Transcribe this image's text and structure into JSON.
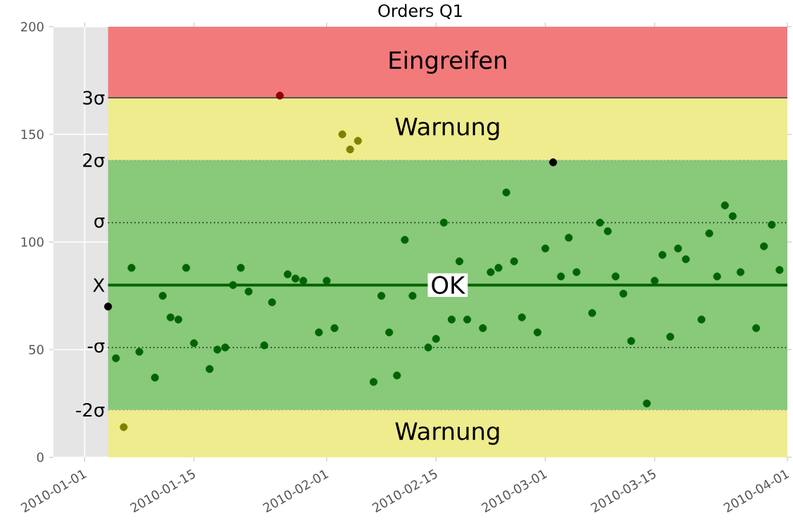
{
  "chart_data": {
    "type": "scatter",
    "title": "Orders Q1",
    "x": [
      "2010-01-04",
      "2010-01-05",
      "2010-01-06",
      "2010-01-07",
      "2010-01-08",
      "2010-01-10",
      "2010-01-11",
      "2010-01-12",
      "2010-01-13",
      "2010-01-14",
      "2010-01-15",
      "2010-01-17",
      "2010-01-18",
      "2010-01-19",
      "2010-01-20",
      "2010-01-21",
      "2010-01-22",
      "2010-01-24",
      "2010-01-25",
      "2010-01-26",
      "2010-01-27",
      "2010-01-28",
      "2010-01-29",
      "2010-01-31",
      "2010-02-01",
      "2010-02-02",
      "2010-02-03",
      "2010-02-04",
      "2010-02-05",
      "2010-02-07",
      "2010-02-08",
      "2010-02-09",
      "2010-02-10",
      "2010-02-11",
      "2010-02-12",
      "2010-02-14",
      "2010-02-15",
      "2010-02-16",
      "2010-02-17",
      "2010-02-18",
      "2010-02-19",
      "2010-02-21",
      "2010-02-22",
      "2010-02-23",
      "2010-02-24",
      "2010-02-25",
      "2010-02-26",
      "2010-02-28",
      "2010-03-01",
      "2010-03-02",
      "2010-03-03",
      "2010-03-04",
      "2010-03-05",
      "2010-03-07",
      "2010-03-08",
      "2010-03-09",
      "2010-03-10",
      "2010-03-11",
      "2010-03-12",
      "2010-03-14",
      "2010-03-15",
      "2010-03-16",
      "2010-03-17",
      "2010-03-18",
      "2010-03-19",
      "2010-03-21",
      "2010-03-22",
      "2010-03-23",
      "2010-03-24",
      "2010-03-25",
      "2010-03-26",
      "2010-03-28",
      "2010-03-29",
      "2010-03-30",
      "2010-03-31"
    ],
    "values": [
      70,
      46,
      14,
      88,
      49,
      37,
      75,
      65,
      64,
      88,
      53,
      41,
      50,
      51,
      80,
      88,
      77,
      52,
      72,
      168,
      85,
      83,
      82,
      58,
      82,
      60,
      150,
      143,
      147,
      35,
      75,
      58,
      38,
      101,
      75,
      51,
      55,
      109,
      64,
      91,
      64,
      60,
      86,
      88,
      123,
      91,
      65,
      58,
      97,
      137,
      84,
      102,
      86,
      67,
      109,
      105,
      84,
      76,
      54,
      25,
      82,
      94,
      56,
      97,
      92,
      64,
      104,
      84,
      117,
      112,
      86,
      60,
      98,
      108,
      87
    ],
    "colors": [
      "#000000",
      "#006400",
      "#808000",
      "#006400",
      "#006400",
      "#006400",
      "#006400",
      "#006400",
      "#006400",
      "#006400",
      "#006400",
      "#006400",
      "#006400",
      "#006400",
      "#006400",
      "#006400",
      "#006400",
      "#006400",
      "#006400",
      "#8b0000",
      "#006400",
      "#006400",
      "#006400",
      "#006400",
      "#006400",
      "#006400",
      "#808000",
      "#808000",
      "#808000",
      "#006400",
      "#006400",
      "#006400",
      "#006400",
      "#006400",
      "#006400",
      "#006400",
      "#006400",
      "#006400",
      "#006400",
      "#006400",
      "#006400",
      "#006400",
      "#006400",
      "#006400",
      "#006400",
      "#006400",
      "#006400",
      "#006400",
      "#006400",
      "#000000",
      "#006400",
      "#006400",
      "#006400",
      "#006400",
      "#006400",
      "#006400",
      "#006400",
      "#006400",
      "#006400",
      "#006400",
      "#006400",
      "#006400",
      "#006400",
      "#006400",
      "#006400",
      "#006400",
      "#006400",
      "#006400",
      "#006400",
      "#006400",
      "#006400",
      "#006400",
      "#006400",
      "#006400",
      "#006400"
    ],
    "marker": "circle",
    "xlim": [
      "2009-12-28",
      "2010-04-01"
    ],
    "xticks": [
      "2010-01-01",
      "2010-01-15",
      "2010-02-01",
      "2010-02-15",
      "2010-03-01",
      "2010-03-15",
      "2010-04-01"
    ],
    "ylim": [
      0,
      200
    ],
    "yticks": [
      0,
      50,
      100,
      150,
      200
    ],
    "grid": true,
    "bands": [
      {
        "axis": "y",
        "from": 167,
        "to": 200,
        "label": "Eingreifen",
        "color": "#f37a7a"
      },
      {
        "axis": "y",
        "from": 138,
        "to": 167,
        "label": "Warnung",
        "color": "#efec8d"
      },
      {
        "axis": "y",
        "from": 22,
        "to": 138,
        "label": "OK",
        "color": "#88c97a"
      },
      {
        "axis": "y",
        "from": 0,
        "to": 22,
        "label": "Warnung",
        "color": "#efec8d"
      }
    ],
    "ref_lines": [
      {
        "axis": "y",
        "value": 167,
        "label": "3σ",
        "color": "#555555",
        "line_style": "solid"
      },
      {
        "axis": "y",
        "value": 138,
        "label": "2σ",
        "color": "#999999",
        "line_style": "dotted"
      },
      {
        "axis": "y",
        "value": 109,
        "label": "σ",
        "color": "#000000",
        "line_style": "dotted"
      },
      {
        "axis": "y",
        "value": 80,
        "label": "X",
        "color": "#006400",
        "line_style": "solid"
      },
      {
        "axis": "y",
        "value": 51,
        "label": "-σ",
        "color": "#000000",
        "line_style": "dotted"
      },
      {
        "axis": "y",
        "value": 22,
        "label": "-2σ",
        "color": "#999999",
        "line_style": "dotted"
      }
    ]
  }
}
